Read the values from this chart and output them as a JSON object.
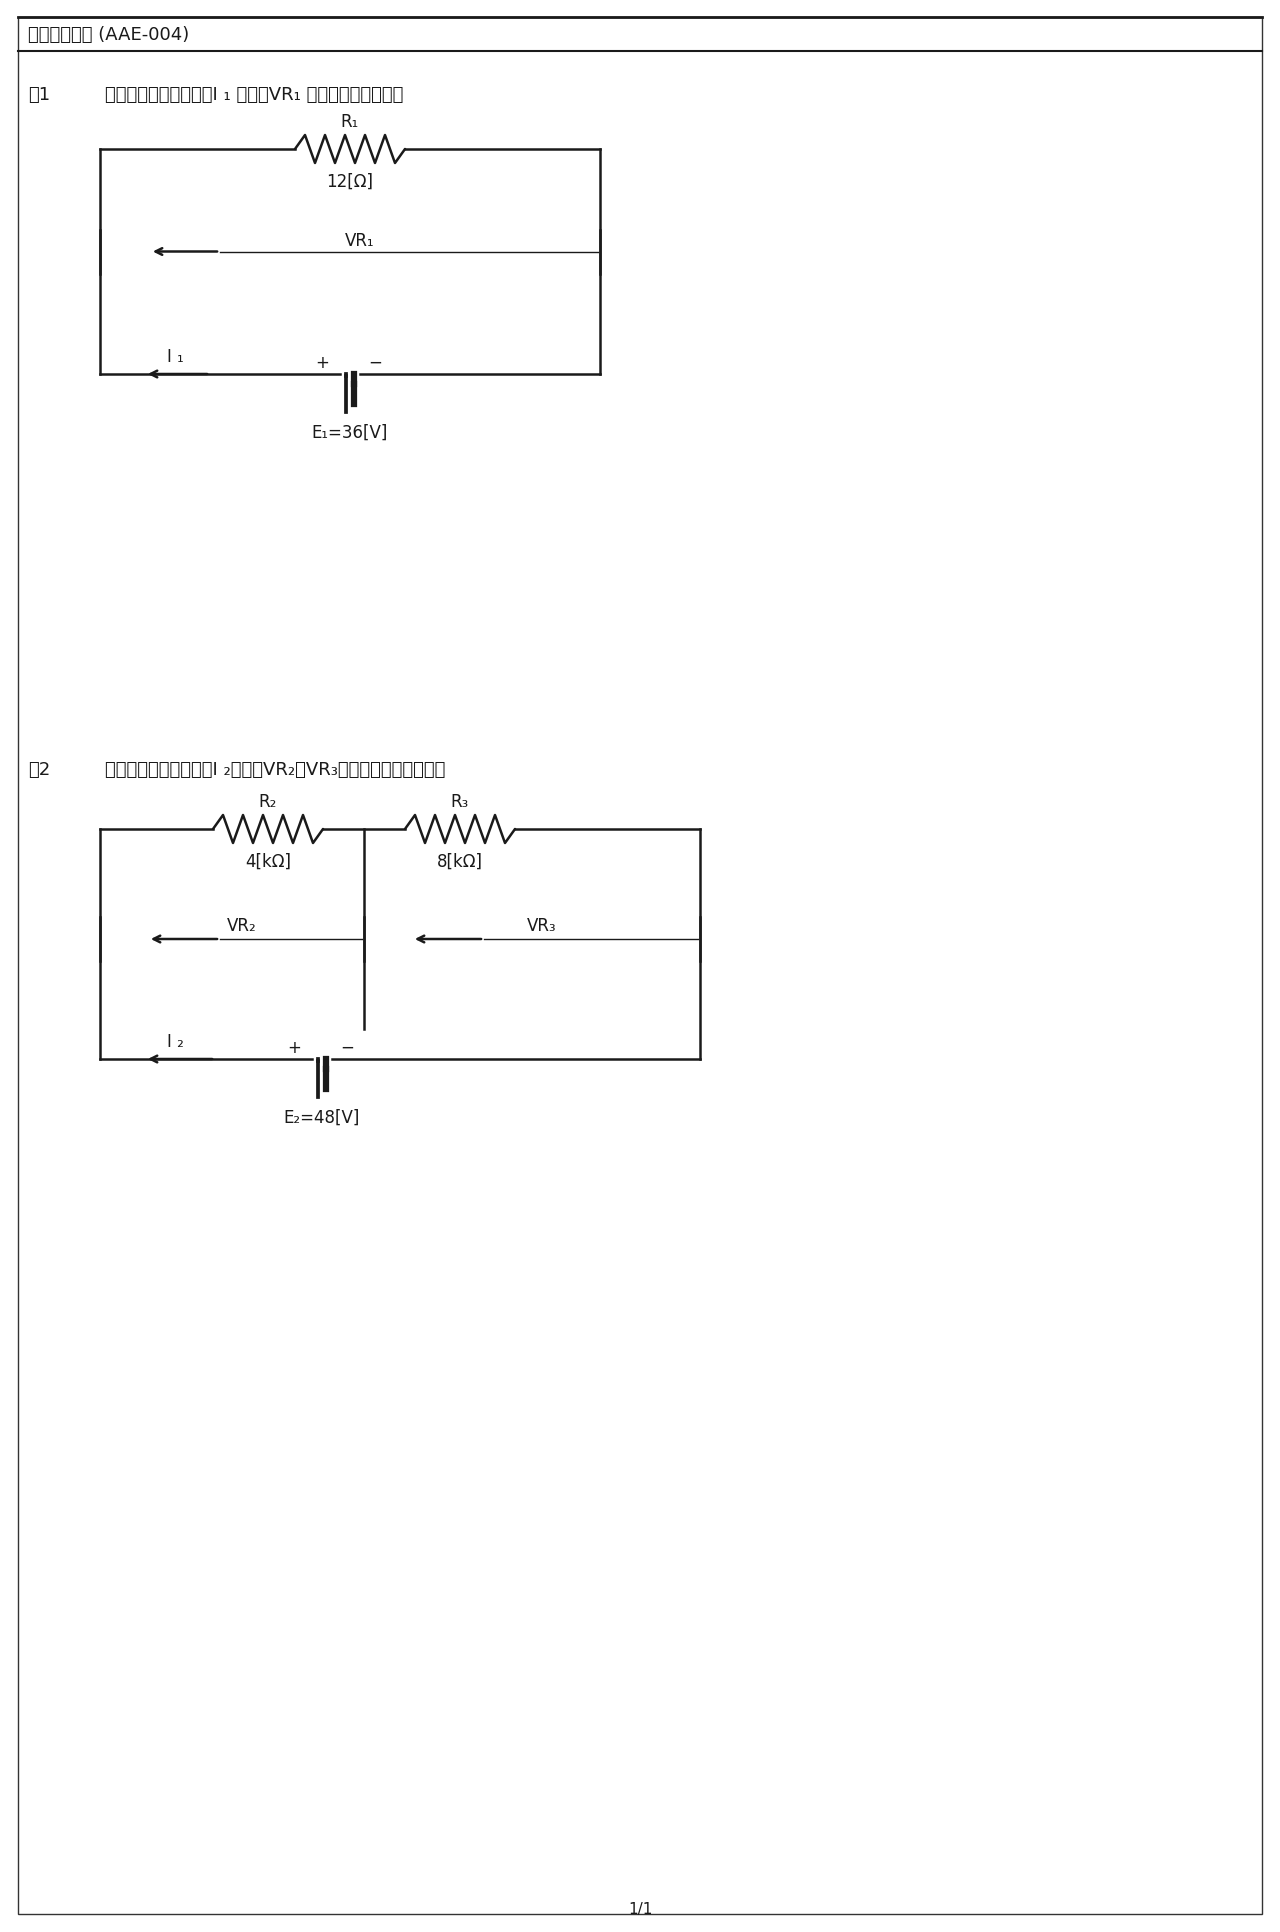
{
  "title": "オームの法則 (AAE-004)",
  "q1_text_a": "問1",
  "q1_text_b": "下図の回路に後いて、I ₁ 及び、VR₁ の値を求めなさい。",
  "q2_text_a": "問2",
  "q2_text_b": "下図の回路に後いて、I ₂、及びVR₂、VR₃　の値を求めなさい。",
  "R1_label": "R₁",
  "R1_value": "12[Ω]",
  "VR1_label": "VR₁",
  "I1_label": "I ₁",
  "E1_label": "E₁=36[V]",
  "R2_label": "R₂",
  "R2_value": "4[kΩ]",
  "R3_label": "R₃",
  "R3_value": "8[kΩ]",
  "VR2_label": "VR₂",
  "VR3_label": "VR₃",
  "I2_label": "I ₂",
  "E2_label": "E₂=48[V]",
  "page_label": "1/1",
  "bg_color": "#ffffff",
  "line_color": "#1a1a1a",
  "text_color": "#1a1a1a",
  "border_color": "#333333"
}
